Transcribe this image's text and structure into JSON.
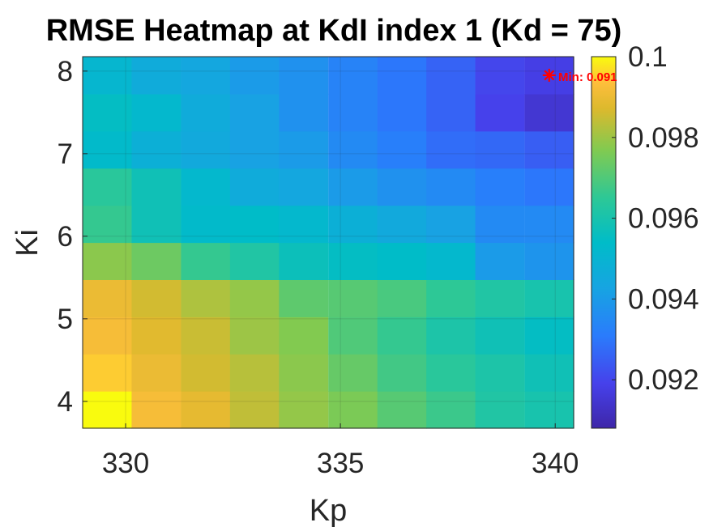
{
  "chart_data": {
    "type": "heatmap",
    "title": "RMSE Heatmap at KdI index 1 (Kd = 75)",
    "xlabel": "Kp",
    "ylabel": "Ki",
    "x": [
      329.57,
      330.71,
      331.86,
      333.0,
      334.14,
      335.29,
      336.43,
      337.57,
      338.71,
      339.86
    ],
    "y": [
      3.9,
      4.35,
      4.8,
      5.25,
      5.7,
      6.15,
      6.6,
      7.05,
      7.5,
      7.95
    ],
    "xlim": [
      329.0,
      340.43
    ],
    "ylim": [
      3.675,
      8.175
    ],
    "xticks": [
      "330",
      "335",
      "340"
    ],
    "xtick_values": [
      330,
      335,
      340
    ],
    "yticks": [
      "4",
      "5",
      "6",
      "7",
      "8"
    ],
    "ytick_values": [
      4,
      5,
      6,
      7,
      8
    ],
    "z": [
      [
        0.1,
        0.0992,
        0.0989,
        0.0984,
        0.0979,
        0.0976,
        0.0971,
        0.0967,
        0.0962,
        0.096
      ],
      [
        0.0995,
        0.099,
        0.0986,
        0.0983,
        0.0978,
        0.0973,
        0.0968,
        0.0964,
        0.0961,
        0.0958
      ],
      [
        0.0992,
        0.0988,
        0.0985,
        0.098,
        0.0977,
        0.097,
        0.0966,
        0.0961,
        0.0958,
        0.0955
      ],
      [
        0.099,
        0.0986,
        0.0982,
        0.0979,
        0.0972,
        0.0971,
        0.0969,
        0.0965,
        0.0962,
        0.096
      ],
      [
        0.0978,
        0.0974,
        0.0966,
        0.0962,
        0.0957,
        0.0955,
        0.0954,
        0.0952,
        0.094,
        0.0938
      ],
      [
        0.0966,
        0.0958,
        0.0953,
        0.0954,
        0.0952,
        0.0948,
        0.0945,
        0.0942,
        0.0935,
        0.0935
      ],
      [
        0.0964,
        0.0958,
        0.0952,
        0.0946,
        0.0944,
        0.094,
        0.0937,
        0.0935,
        0.0932,
        0.093
      ],
      [
        0.0953,
        0.0948,
        0.0945,
        0.0942,
        0.094,
        0.0935,
        0.0932,
        0.0928,
        0.0927,
        0.0925
      ],
      [
        0.0955,
        0.0952,
        0.0946,
        0.0942,
        0.0937,
        0.0933,
        0.093,
        0.0926,
        0.0919,
        0.0915
      ],
      [
        0.0951,
        0.0946,
        0.0944,
        0.094,
        0.0937,
        0.0933,
        0.093,
        0.0926,
        0.092,
        0.0918
      ]
    ],
    "colormap": "parula",
    "clim": [
      0.0908,
      0.1
    ],
    "colorbar_ticks": [
      "0.092",
      "0.094",
      "0.096",
      "0.098",
      "0.1"
    ],
    "colorbar_tick_values": [
      0.092,
      0.094,
      0.096,
      0.098,
      0.1
    ],
    "marker": {
      "x": 339.86,
      "y": 7.95,
      "symbol": "*",
      "color": "#ff0000"
    },
    "annotation": "Min: 0.091",
    "grid": true
  }
}
